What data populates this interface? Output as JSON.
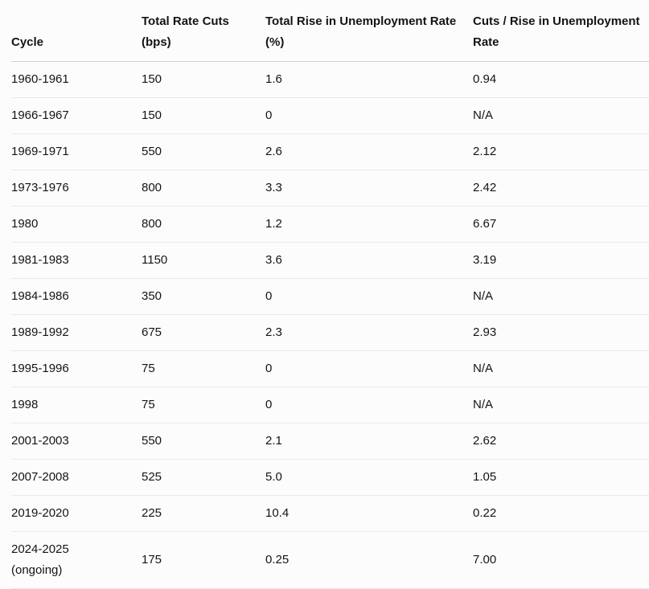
{
  "colors": {
    "background": "#fcfcfc",
    "text": "#141414",
    "header_border": "#d2d2d2",
    "row_border": "#e9e9e9"
  },
  "table": {
    "columns": [
      {
        "id": "cycle",
        "label": "Cycle",
        "header_lines": [
          "Cycle"
        ]
      },
      {
        "id": "total-rate-cuts-bps",
        "label": "Total Rate Cuts (bps)",
        "header_lines": [
          "Total Rate Cuts",
          "(bps)"
        ]
      },
      {
        "id": "total-rise-unemployment-pct",
        "label": "Total Rise in Unemployment Rate (%)",
        "header_lines": [
          "Total Rise in Unemployment Rate",
          "(%)"
        ]
      },
      {
        "id": "cuts-per-rise",
        "label": "Cuts / Rise in Unemployment Rate",
        "header_lines": [
          "Cuts / Rise in Unemployment",
          "Rate"
        ]
      }
    ],
    "rows": [
      {
        "cells": [
          [
            "1960-1961"
          ],
          [
            "150"
          ],
          [
            "1.6"
          ],
          [
            "0.94"
          ]
        ]
      },
      {
        "cells": [
          [
            "1966-1967"
          ],
          [
            "150"
          ],
          [
            "0"
          ],
          [
            "N/A"
          ]
        ]
      },
      {
        "cells": [
          [
            "1969-1971"
          ],
          [
            "550"
          ],
          [
            "2.6"
          ],
          [
            "2.12"
          ]
        ]
      },
      {
        "cells": [
          [
            "1973-1976"
          ],
          [
            "800"
          ],
          [
            "3.3"
          ],
          [
            "2.42"
          ]
        ]
      },
      {
        "cells": [
          [
            "1980"
          ],
          [
            "800"
          ],
          [
            "1.2"
          ],
          [
            "6.67"
          ]
        ]
      },
      {
        "cells": [
          [
            "1981-1983"
          ],
          [
            "1150"
          ],
          [
            "3.6"
          ],
          [
            "3.19"
          ]
        ]
      },
      {
        "cells": [
          [
            "1984-1986"
          ],
          [
            "350"
          ],
          [
            "0"
          ],
          [
            "N/A"
          ]
        ]
      },
      {
        "cells": [
          [
            "1989-1992"
          ],
          [
            "675"
          ],
          [
            "2.3"
          ],
          [
            "2.93"
          ]
        ]
      },
      {
        "cells": [
          [
            "1995-1996"
          ],
          [
            "75"
          ],
          [
            "0"
          ],
          [
            "N/A"
          ]
        ]
      },
      {
        "cells": [
          [
            "1998"
          ],
          [
            "75"
          ],
          [
            "0"
          ],
          [
            "N/A"
          ]
        ]
      },
      {
        "cells": [
          [
            "2001-2003"
          ],
          [
            "550"
          ],
          [
            "2.1"
          ],
          [
            "2.62"
          ]
        ]
      },
      {
        "cells": [
          [
            "2007-2008"
          ],
          [
            "525"
          ],
          [
            "5.0"
          ],
          [
            "1.05"
          ]
        ]
      },
      {
        "cells": [
          [
            "2019-2020"
          ],
          [
            "225"
          ],
          [
            "10.4"
          ],
          [
            "0.22"
          ]
        ]
      },
      {
        "cells": [
          [
            "2024-2025",
            "(ongoing)"
          ],
          [
            "175"
          ],
          [
            "0.25"
          ],
          [
            "7.00"
          ]
        ]
      }
    ]
  }
}
